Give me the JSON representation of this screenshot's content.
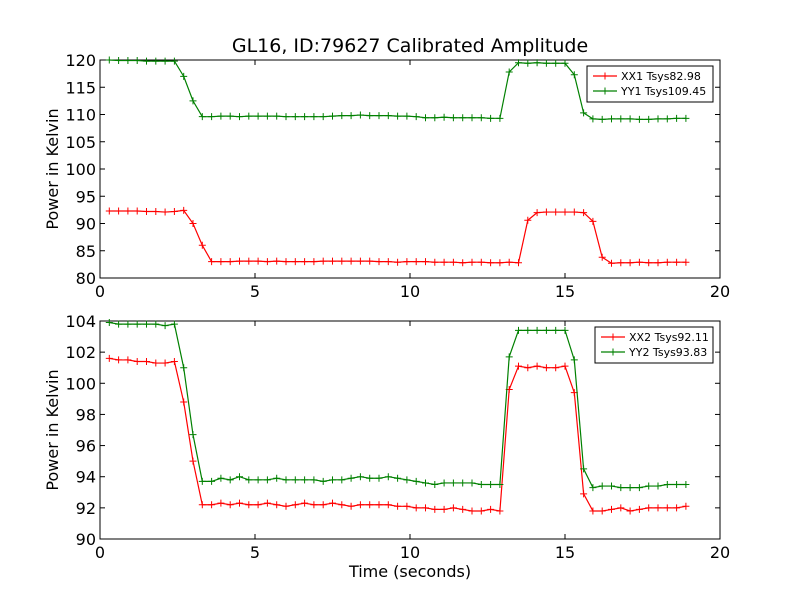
{
  "figure": {
    "title": "GL16, ID:79627 Calibrated Amplitude"
  },
  "chart_data": [
    {
      "type": "line",
      "title": "GL16, ID:79627 Calibrated Amplitude",
      "xlabel": "",
      "ylabel": "Power in Kelvin",
      "xlim": [
        0,
        20
      ],
      "ylim": [
        80,
        120
      ],
      "xticks": [
        "0",
        "5",
        "10",
        "15",
        "20"
      ],
      "yticks": [
        "80",
        "85",
        "90",
        "95",
        "100",
        "105",
        "110",
        "115",
        "120"
      ],
      "legend_position": "top-right",
      "x": [
        0.3,
        0.6,
        0.9,
        1.2,
        1.5,
        1.8,
        2.1,
        2.4,
        2.7,
        3.0,
        3.3,
        3.6,
        3.9,
        4.2,
        4.5,
        4.8,
        5.1,
        5.4,
        5.7,
        6.0,
        6.3,
        6.6,
        6.9,
        7.2,
        7.5,
        7.8,
        8.1,
        8.4,
        8.7,
        9.0,
        9.3,
        9.6,
        9.9,
        10.2,
        10.5,
        10.8,
        11.1,
        11.4,
        11.7,
        12.0,
        12.3,
        12.6,
        12.9,
        13.2,
        13.5,
        13.8,
        14.1,
        14.4,
        14.7,
        15.0,
        15.3,
        15.6,
        15.9,
        16.2,
        16.5,
        16.8,
        17.1,
        17.4,
        17.7,
        18.0,
        18.3,
        18.6,
        18.9
      ],
      "series": [
        {
          "name": "XX1 Tsys82.98",
          "color": "#ff0000",
          "values": [
            92.3,
            92.3,
            92.3,
            92.3,
            92.2,
            92.2,
            92.1,
            92.2,
            92.4,
            90.0,
            86.0,
            83.0,
            83.0,
            83.0,
            83.1,
            83.1,
            83.1,
            83.0,
            83.1,
            83.0,
            83.0,
            83.0,
            83.0,
            83.1,
            83.1,
            83.1,
            83.1,
            83.1,
            83.1,
            83.0,
            83.0,
            82.9,
            83.0,
            83.0,
            83.0,
            82.9,
            82.9,
            82.9,
            82.8,
            82.9,
            82.9,
            82.8,
            82.8,
            82.9,
            82.8,
            90.6,
            92.0,
            92.1,
            92.1,
            92.1,
            92.1,
            92.0,
            90.4,
            83.8,
            82.7,
            82.8,
            82.8,
            82.9,
            82.8,
            82.8,
            82.9,
            82.9,
            82.9
          ]
        },
        {
          "name": "YY1 Tsys109.45",
          "color": "#008000",
          "values": [
            120.0,
            119.9,
            119.9,
            119.9,
            119.8,
            119.8,
            119.8,
            119.8,
            117.0,
            112.5,
            109.6,
            109.6,
            109.7,
            109.7,
            109.6,
            109.7,
            109.7,
            109.7,
            109.7,
            109.6,
            109.6,
            109.6,
            109.6,
            109.6,
            109.7,
            109.8,
            109.8,
            109.9,
            109.8,
            109.8,
            109.8,
            109.7,
            109.7,
            109.6,
            109.4,
            109.4,
            109.5,
            109.4,
            109.4,
            109.4,
            109.4,
            109.3,
            109.3,
            117.8,
            119.5,
            119.4,
            119.5,
            119.4,
            119.4,
            119.4,
            117.3,
            110.3,
            109.2,
            109.1,
            109.2,
            109.2,
            109.2,
            109.1,
            109.1,
            109.2,
            109.2,
            109.3,
            109.3
          ]
        }
      ]
    },
    {
      "type": "line",
      "title": "",
      "xlabel": "Time (seconds)",
      "ylabel": "Power in Kelvin",
      "xlim": [
        0,
        20
      ],
      "ylim": [
        90,
        104
      ],
      "xticks": [
        "0",
        "5",
        "10",
        "15",
        "20"
      ],
      "yticks": [
        "90",
        "92",
        "94",
        "96",
        "98",
        "100",
        "102",
        "104"
      ],
      "legend_position": "top-right",
      "x": [
        0.3,
        0.6,
        0.9,
        1.2,
        1.5,
        1.8,
        2.1,
        2.4,
        2.7,
        3.0,
        3.3,
        3.6,
        3.9,
        4.2,
        4.5,
        4.8,
        5.1,
        5.4,
        5.7,
        6.0,
        6.3,
        6.6,
        6.9,
        7.2,
        7.5,
        7.8,
        8.1,
        8.4,
        8.7,
        9.0,
        9.3,
        9.6,
        9.9,
        10.2,
        10.5,
        10.8,
        11.1,
        11.4,
        11.7,
        12.0,
        12.3,
        12.6,
        12.9,
        13.2,
        13.5,
        13.8,
        14.1,
        14.4,
        14.7,
        15.0,
        15.3,
        15.6,
        15.9,
        16.2,
        16.5,
        16.8,
        17.1,
        17.4,
        17.7,
        18.0,
        18.3,
        18.6,
        18.9
      ],
      "series": [
        {
          "name": "XX2 Tsys92.11",
          "color": "#ff0000",
          "values": [
            101.6,
            101.5,
            101.5,
            101.4,
            101.4,
            101.3,
            101.3,
            101.4,
            98.8,
            95.0,
            92.2,
            92.2,
            92.3,
            92.2,
            92.3,
            92.2,
            92.2,
            92.3,
            92.2,
            92.1,
            92.2,
            92.3,
            92.2,
            92.2,
            92.3,
            92.2,
            92.1,
            92.2,
            92.2,
            92.2,
            92.2,
            92.1,
            92.1,
            92.0,
            92.0,
            91.9,
            91.9,
            92.0,
            91.9,
            91.8,
            91.8,
            91.9,
            91.8,
            99.6,
            101.1,
            101.0,
            101.1,
            101.0,
            101.0,
            101.1,
            99.4,
            92.9,
            91.8,
            91.8,
            91.9,
            92.0,
            91.8,
            91.9,
            92.0,
            92.0,
            92.0,
            92.0,
            92.1
          ]
        },
        {
          "name": "YY2 Tsys93.83",
          "color": "#008000",
          "values": [
            103.9,
            103.8,
            103.8,
            103.8,
            103.8,
            103.8,
            103.7,
            103.8,
            101.0,
            96.7,
            93.7,
            93.7,
            93.9,
            93.8,
            94.0,
            93.8,
            93.8,
            93.8,
            93.9,
            93.8,
            93.8,
            93.8,
            93.8,
            93.7,
            93.8,
            93.8,
            93.9,
            94.0,
            93.9,
            93.9,
            94.0,
            93.9,
            93.8,
            93.7,
            93.6,
            93.5,
            93.6,
            93.6,
            93.6,
            93.6,
            93.5,
            93.5,
            93.5,
            101.7,
            103.4,
            103.4,
            103.4,
            103.4,
            103.4,
            103.4,
            101.5,
            94.5,
            93.3,
            93.4,
            93.4,
            93.3,
            93.3,
            93.3,
            93.4,
            93.4,
            93.5,
            93.5,
            93.5
          ]
        }
      ]
    }
  ]
}
